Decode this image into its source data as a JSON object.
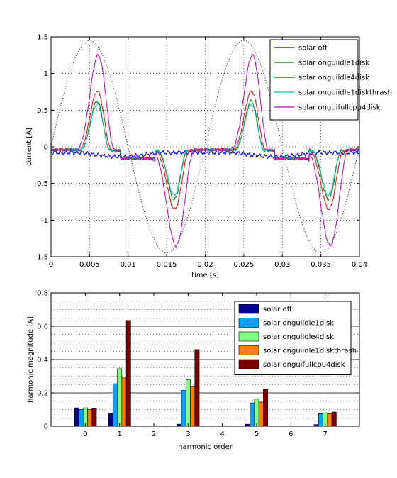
{
  "chart_data": [
    {
      "type": "line",
      "xlabel": "time [s]",
      "ylabel": "current [A]",
      "xlim": [
        0,
        0.04
      ],
      "ylim": [
        -1.5,
        1.5
      ],
      "xticks": [
        "0",
        "0.005",
        "0.01",
        "0.015",
        "0.02",
        "0.025",
        "0.03",
        "0.035",
        "0.04"
      ],
      "yticks": [
        "-1.5",
        "-1",
        "-0.5",
        "0",
        "0.5",
        "1",
        "1.5"
      ],
      "grid": "dotted",
      "legend": "top-right",
      "reference_sine": {
        "amplitude": 1.45,
        "frequency_hz": 50,
        "style": "dotted",
        "color": "#000000"
      },
      "series": [
        {
          "name": "solar off",
          "color": "#0000ff",
          "peak": 0,
          "trough": 0,
          "rise_start": 0,
          "rise_end": 0,
          "fall_start": 0,
          "fall_end": 0
        },
        {
          "name": "solar onguiidle1disk",
          "color": "#008000",
          "peak": 0.62,
          "trough": -0.82,
          "rise_start": 0.0035,
          "rise_end": 0.0077,
          "fall_start": 0.0135,
          "fall_end": 0.0177
        },
        {
          "name": "solar onguiidle4disk",
          "color": "#ff0000",
          "peak": 0.76,
          "trough": -0.95,
          "rise_start": 0.0033,
          "rise_end": 0.0079,
          "fall_start": 0.0132,
          "fall_end": 0.018
        },
        {
          "name": "solar onguiidle1diskthrash",
          "color": "#00bfbf",
          "peak": 0.58,
          "trough": -0.76,
          "rise_start": 0.0035,
          "rise_end": 0.0077,
          "fall_start": 0.0135,
          "fall_end": 0.0177
        },
        {
          "name": "solar onguifullcpu4disk",
          "color": "#bf00bf",
          "peak": 1.25,
          "trough": -1.45,
          "rise_start": 0.003,
          "rise_end": 0.0083,
          "fall_start": 0.0128,
          "fall_end": 0.0186
        }
      ]
    },
    {
      "type": "bar",
      "xlabel": "harmonic order",
      "ylabel": "harmonic magnitude [A]",
      "categories": [
        "0",
        "1",
        "2",
        "3",
        "4",
        "5",
        "6",
        "7"
      ],
      "ylim": [
        0,
        0.8
      ],
      "yticks": [
        "0",
        "0.2",
        "0.4",
        "0.6",
        "0.8"
      ],
      "grid": "dotted",
      "legend": "top-right",
      "series": [
        {
          "name": "solar off",
          "color": "#00008f",
          "values": [
            0.11,
            0.075,
            0.003,
            0.012,
            0.003,
            0.012,
            0.003,
            0.01
          ]
        },
        {
          "name": "solar onguiidle1disk",
          "color": "#00a0ff",
          "values": [
            0.1,
            0.255,
            0.003,
            0.215,
            0.003,
            0.14,
            0.003,
            0.075
          ]
        },
        {
          "name": "solar onguiidle4disk",
          "color": "#80ff80",
          "values": [
            0.11,
            0.345,
            0.003,
            0.28,
            0.003,
            0.165,
            0.003,
            0.08
          ]
        },
        {
          "name": "solar onguiidle1diskthrash",
          "color": "#ff7f00",
          "values": [
            0.1,
            0.29,
            0.003,
            0.24,
            0.003,
            0.145,
            0.003,
            0.075
          ]
        },
        {
          "name": "solar onguifullcpu4disk",
          "color": "#7f0000",
          "values": [
            0.105,
            0.635,
            0.003,
            0.46,
            0.003,
            0.22,
            0.003,
            0.085
          ]
        }
      ]
    }
  ]
}
